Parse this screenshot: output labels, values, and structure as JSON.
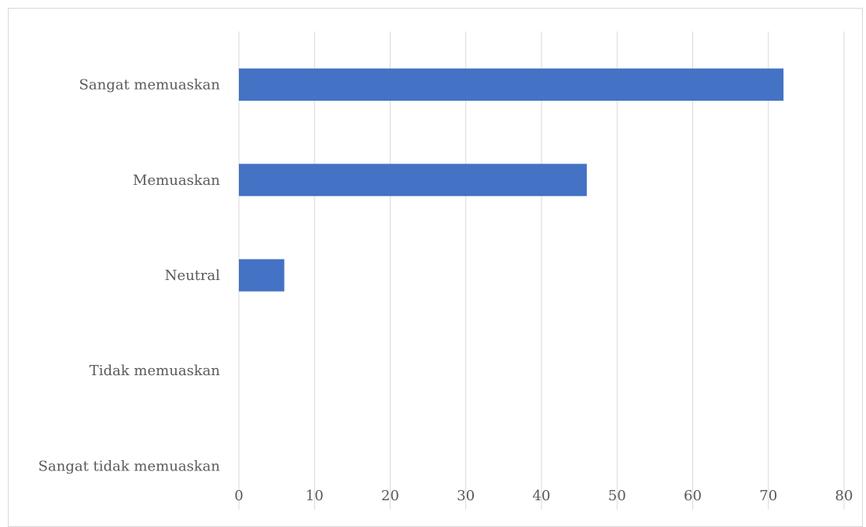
{
  "chart_data": {
    "type": "bar",
    "orientation": "horizontal",
    "categories": [
      "Sangat memuaskan",
      "Memuaskan",
      "Neutral",
      "Tidak memuaskan",
      "Sangat tidak memuaskan"
    ],
    "values": [
      72,
      46,
      6,
      0,
      0
    ],
    "xlim": [
      0,
      80
    ],
    "x_ticks": [
      "0",
      "10",
      "20",
      "30",
      "40",
      "50",
      "60",
      "70",
      "80"
    ],
    "grid": true,
    "legend": "none",
    "bar_color": "#4472c4"
  }
}
